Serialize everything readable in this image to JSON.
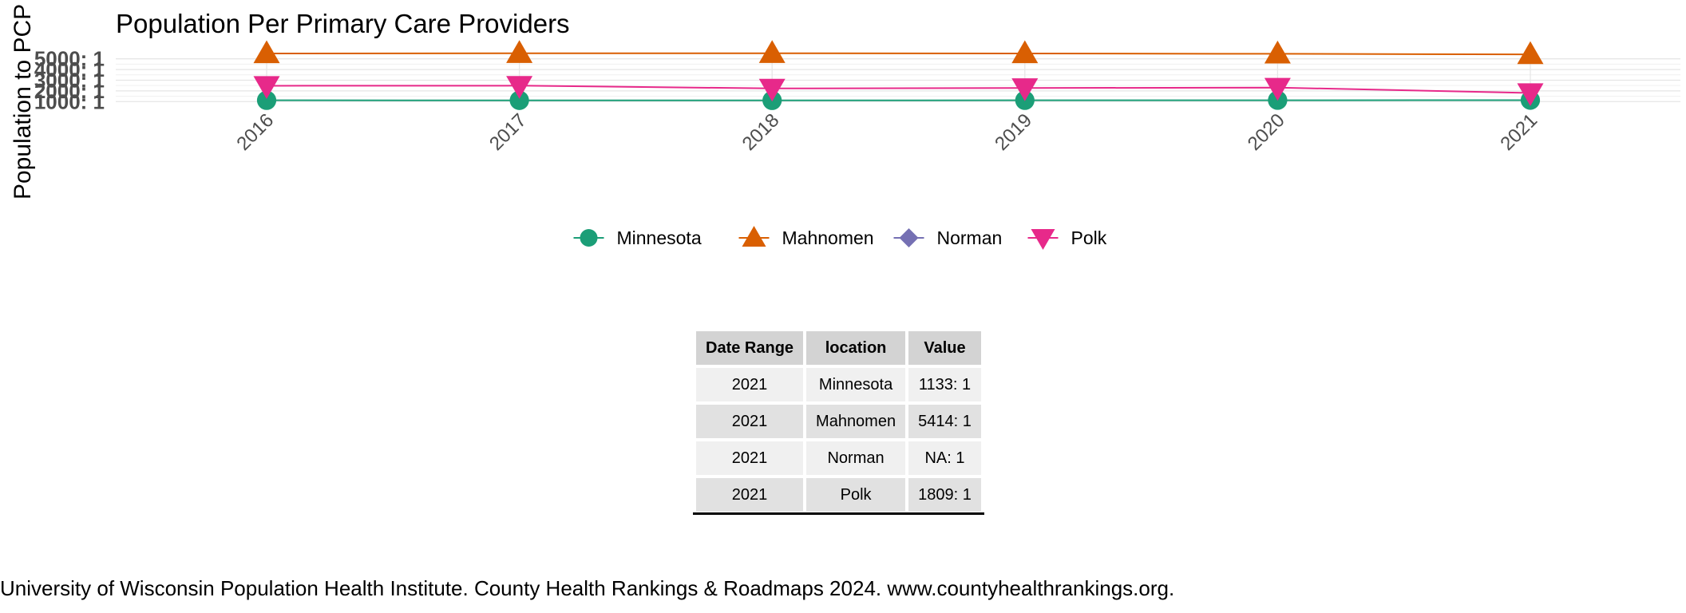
{
  "chart_data": {
    "type": "line",
    "title": "Population Per Primary Care Providers",
    "ylabel": "Population to PCP R",
    "xlabel": "",
    "x": [
      "2016",
      "2017",
      "2018",
      "2019",
      "2020",
      "2021"
    ],
    "y_ticks": [
      "1000: 1",
      "2000: 1",
      "3000: 1",
      "4000: 1",
      "5000: 1"
    ],
    "y_tick_values": [
      1000,
      2000,
      3000,
      4000,
      5000
    ],
    "ylim": [
      870,
      5650
    ],
    "grid": true,
    "legend_position": "bottom",
    "series": [
      {
        "name": "Minnesota",
        "color": "#1b9e77",
        "marker": "circle",
        "values": [
          1120,
          1115,
          1110,
          1120,
          1125,
          1133
        ]
      },
      {
        "name": "Mahnomen",
        "color": "#d95f02",
        "marker": "triangle-up",
        "values": [
          5500,
          5520,
          5520,
          5500,
          5470,
          5414
        ]
      },
      {
        "name": "Norman",
        "color": "#7570b3",
        "marker": "diamond",
        "values": [
          null,
          null,
          null,
          null,
          null,
          null
        ]
      },
      {
        "name": "Polk",
        "color": "#e7298a",
        "marker": "triangle-down",
        "values": [
          2480,
          2490,
          2230,
          2270,
          2310,
          1809
        ]
      }
    ]
  },
  "table": {
    "headers": [
      "Date Range",
      "location",
      "Value"
    ],
    "rows": [
      [
        "2021",
        "Minnesota",
        "1133: 1"
      ],
      [
        "2021",
        "Mahnomen",
        "5414: 1"
      ],
      [
        "2021",
        "Norman",
        "NA: 1"
      ],
      [
        "2021",
        "Polk",
        "1809: 1"
      ]
    ]
  },
  "source": "University of Wisconsin Population Health Institute. County Health Rankings & Roadmaps 2024. www.countyhealthrankings.org."
}
